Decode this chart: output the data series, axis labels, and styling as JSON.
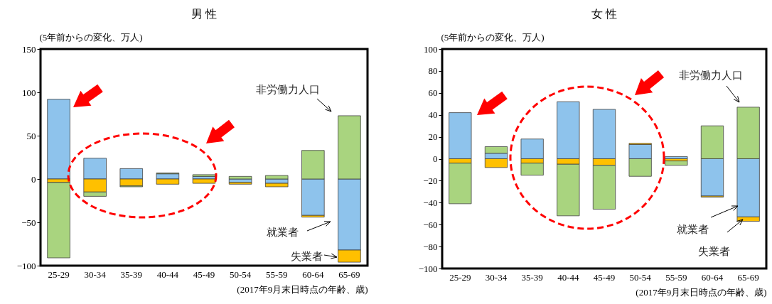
{
  "chart_data": [
    {
      "type": "bar",
      "stacked": true,
      "title": "男 性",
      "ylabel": "(5年前からの変化、万人)",
      "xlabel": "(2017年9月末日時点の年齢、歳)",
      "legend": false,
      "grid": false,
      "categories": [
        "25-29",
        "30-34",
        "35-39",
        "40-44",
        "45-49",
        "50-54",
        "55-59",
        "60-64",
        "65-69"
      ],
      "ylim": [
        -100,
        150
      ],
      "yticks": [
        -100,
        -50,
        0,
        50,
        100,
        150
      ],
      "series": [
        {
          "name": "就業者",
          "color": "#8ec3ec",
          "values": [
            92,
            24,
            12,
            6,
            3,
            -4,
            -5,
            -42,
            -82
          ]
        },
        {
          "name": "失業者",
          "color": "#ffc000",
          "values": [
            -4,
            -15,
            -8,
            -6,
            -5,
            -2,
            -4,
            -2,
            -14
          ]
        },
        {
          "name": "非労働力人口",
          "color": "#a9d47f",
          "values": [
            -87,
            -5,
            -1,
            1,
            2,
            3,
            4,
            33,
            73
          ]
        }
      ]
    },
    {
      "type": "bar",
      "stacked": true,
      "title": "女 性",
      "ylabel": "(5年前からの変化、万人)",
      "xlabel": "(2017年9月末日時点の年齢、歳)",
      "legend": false,
      "grid": false,
      "categories": [
        "25-29",
        "30-34",
        "35-39",
        "40-44",
        "45-49",
        "50-54",
        "55-59",
        "60-64",
        "65-69"
      ],
      "ylim": [
        -100,
        100
      ],
      "yticks": [
        -100,
        -80,
        -60,
        -40,
        -20,
        0,
        20,
        40,
        60,
        80,
        100
      ],
      "series": [
        {
          "name": "就業者",
          "color": "#8ec3ec",
          "values": [
            42,
            5,
            18,
            52,
            45,
            13,
            2,
            -34,
            -53
          ]
        },
        {
          "name": "失業者",
          "color": "#ffc000",
          "values": [
            -4,
            -8,
            -4,
            -5,
            -6,
            1,
            -2,
            -1,
            -4
          ]
        },
        {
          "name": "非労働力人口",
          "color": "#a9d47f",
          "values": [
            -37,
            6,
            -11,
            -47,
            -40,
            -16,
            -4,
            30,
            47
          ]
        }
      ]
    }
  ]
}
